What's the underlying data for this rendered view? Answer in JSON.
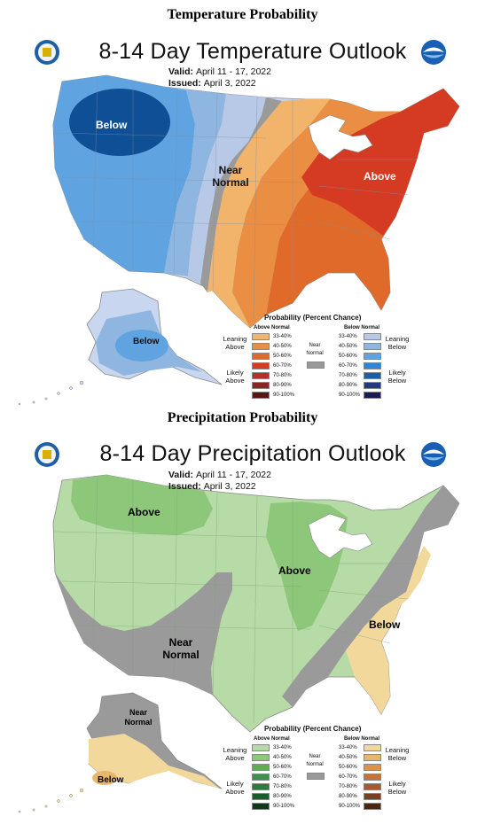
{
  "temperature": {
    "section_heading": "Temperature Probability",
    "title": "8-14 Day Temperature Outlook",
    "valid_label": "Valid:",
    "valid_value": "April 11 - 17, 2022",
    "issued_label": "Issued:",
    "issued_value": "April 3, 2022",
    "labels": {
      "below_west": "Below",
      "near_normal": "Near Normal",
      "above_east": "Above",
      "below_alaska": "Below"
    },
    "legend": {
      "title": "Probability (Percent Chance)",
      "above_header": "Above Normal",
      "below_header": "Below Normal",
      "near_header": "Near Normal",
      "leaning_above": "Leaning Above",
      "likely_above": "Likely Above",
      "leaning_below": "Leaning Below",
      "likely_below": "Likely Below",
      "percent_bins": [
        "33-40%",
        "40-50%",
        "50-60%",
        "60-70%",
        "70-80%",
        "80-90%",
        "90-100%"
      ],
      "above_colors": [
        "#f2b46a",
        "#e98e42",
        "#e06a2a",
        "#d43b22",
        "#b72f2a",
        "#8e2323",
        "#5a1515"
      ],
      "below_colors": [
        "#b8c9e8",
        "#8fb6e0",
        "#5fa3e0",
        "#2f86d6",
        "#1a5fa8",
        "#23397e",
        "#1b1a55"
      ],
      "near_color": "#9a9a9a"
    }
  },
  "precipitation": {
    "section_heading": "Precipitation Probability",
    "title": "8-14 Day Precipitation Outlook",
    "valid_label": "Valid:",
    "valid_value": "April 11 - 17, 2022",
    "issued_label": "Issued:",
    "issued_value": "April 3, 2022",
    "labels": {
      "above_north": "Above",
      "above_midwest": "Above",
      "near_normal": "Near Normal",
      "below_southeast": "Below",
      "near_normal_alaska": "Near Normal",
      "below_alaska": "Below"
    },
    "legend": {
      "title": "Probability (Percent Chance)",
      "above_header": "Above Normal",
      "below_header": "Below Normal",
      "near_header": "Near Normal",
      "leaning_above": "Leaning Above",
      "likely_above": "Likely Above",
      "leaning_below": "Leaning Below",
      "likely_below": "Likely Below",
      "percent_bins": [
        "33-40%",
        "40-50%",
        "50-60%",
        "60-70%",
        "70-80%",
        "80-90%",
        "90-100%"
      ],
      "above_colors": [
        "#b7dba6",
        "#8dc77a",
        "#5fae55",
        "#3f9149",
        "#2d7a3c",
        "#1d5c2b",
        "#0f3a1a"
      ],
      "below_colors": [
        "#f2d89b",
        "#e8b86a",
        "#d9934a",
        "#c4723a",
        "#a55a2e",
        "#7a3f20",
        "#4a2511"
      ],
      "near_color": "#9a9a9a"
    }
  },
  "logos": {
    "left": "doc-seal-icon",
    "right": "noaa-logo-icon"
  }
}
